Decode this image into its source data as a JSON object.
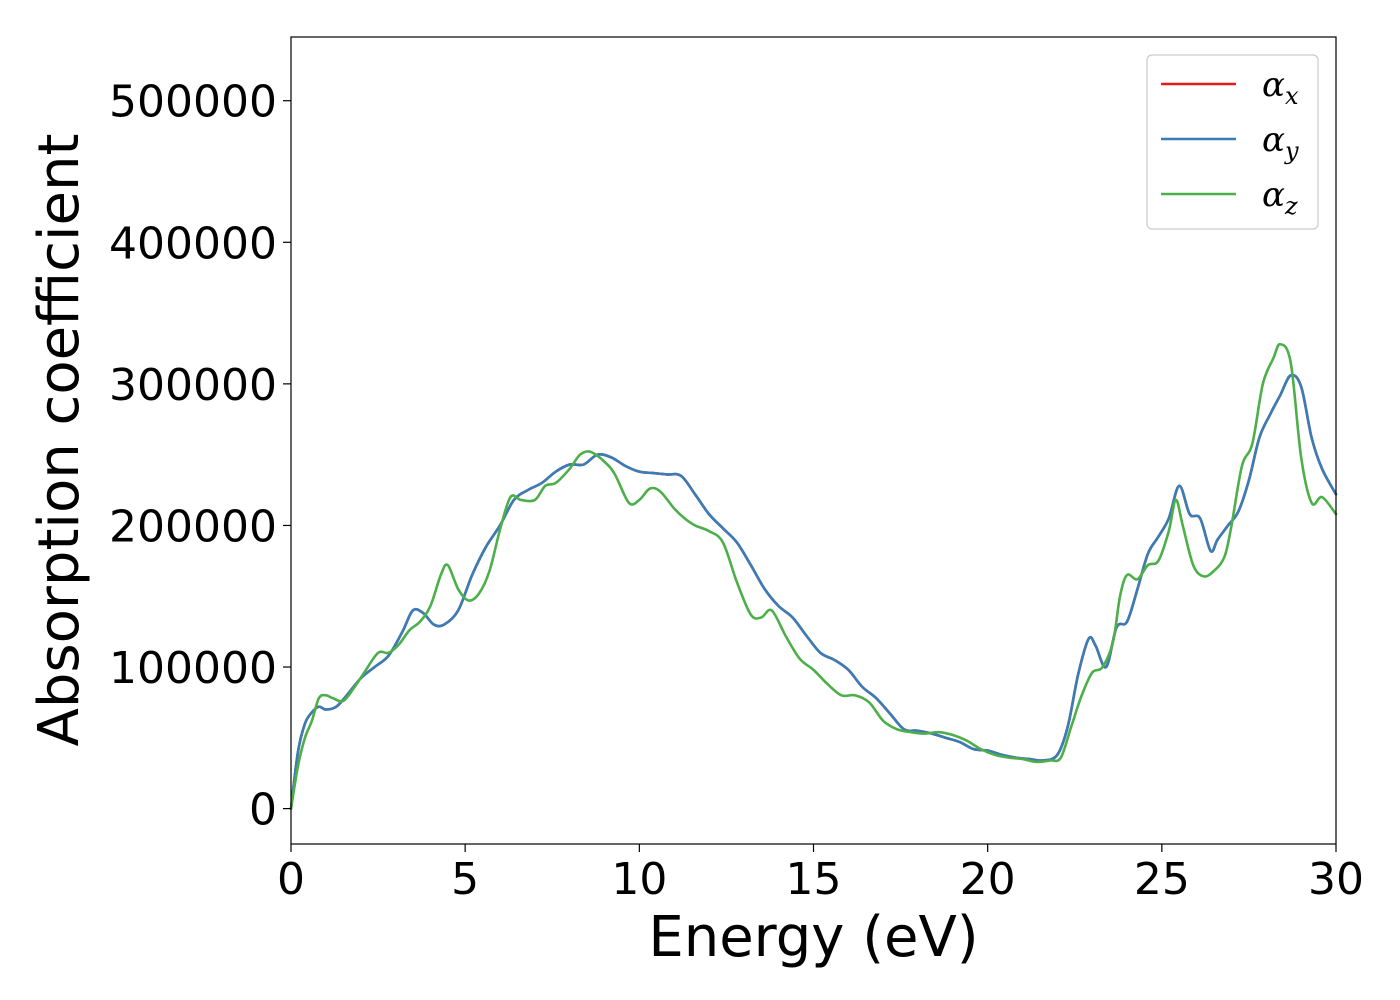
{
  "chart_data": {
    "type": "line",
    "title": "",
    "xlabel": "Energy (eV)",
    "ylabel": "Absorption coefficient",
    "xlim": [
      0,
      30
    ],
    "ylim": [
      -25000,
      545000
    ],
    "x_ticks": [
      0,
      5,
      10,
      15,
      20,
      25,
      30
    ],
    "y_ticks": [
      0,
      100000,
      200000,
      300000,
      400000,
      500000
    ],
    "grid": false,
    "legend_position": "top-right",
    "series": [
      {
        "name": "α_x",
        "symbol": "α",
        "subscript": "x",
        "color": "#e41a1c",
        "x": [
          0,
          0.2,
          0.4,
          0.6,
          0.8,
          1.0,
          1.3,
          1.6,
          2.0,
          2.4,
          2.8,
          3.2,
          3.5,
          3.8,
          4.1,
          4.4,
          4.8,
          5.2,
          5.6,
          6.0,
          6.4,
          6.8,
          7.2,
          7.6,
          8.0,
          8.4,
          8.8,
          9.2,
          9.6,
          10.0,
          10.4,
          10.8,
          11.2,
          11.6,
          12.0,
          12.4,
          12.8,
          13.2,
          13.6,
          14.0,
          14.4,
          14.8,
          15.2,
          15.6,
          16.0,
          16.4,
          16.8,
          17.2,
          17.6,
          18.0,
          18.4,
          18.8,
          19.2,
          19.6,
          20.0,
          20.4,
          20.8,
          21.2,
          21.6,
          22.0,
          22.3,
          22.6,
          22.9,
          23.1,
          23.4,
          23.7,
          24.0,
          24.3,
          24.6,
          24.9,
          25.2,
          25.5,
          25.8,
          26.1,
          26.4,
          26.6,
          26.9,
          27.2,
          27.5,
          27.8,
          28.1,
          28.4,
          28.7,
          29.0,
          29.3,
          29.6,
          30.0
        ],
        "y": [
          0,
          40000,
          60000,
          68000,
          72000,
          70000,
          72000,
          80000,
          92000,
          100000,
          108000,
          125000,
          140000,
          138000,
          130000,
          130000,
          140000,
          165000,
          185000,
          200000,
          218000,
          225000,
          230000,
          238000,
          243000,
          243000,
          250000,
          248000,
          242000,
          238000,
          237000,
          236000,
          235000,
          222000,
          208000,
          198000,
          188000,
          172000,
          155000,
          143000,
          135000,
          122000,
          110000,
          105000,
          98000,
          86000,
          78000,
          67000,
          56000,
          55000,
          53000,
          50000,
          47000,
          42000,
          41000,
          38000,
          36000,
          35000,
          34000,
          38000,
          58000,
          95000,
          120000,
          115000,
          100000,
          128000,
          132000,
          155000,
          180000,
          192000,
          205000,
          228000,
          208000,
          205000,
          182000,
          190000,
          200000,
          210000,
          232000,
          262000,
          278000,
          292000,
          306000,
          298000,
          262000,
          240000,
          222000
        ]
      },
      {
        "name": "α_y",
        "symbol": "α",
        "subscript": "y",
        "color": "#377eb8",
        "x": [
          0,
          0.2,
          0.4,
          0.6,
          0.8,
          1.0,
          1.3,
          1.6,
          2.0,
          2.4,
          2.8,
          3.2,
          3.5,
          3.8,
          4.1,
          4.4,
          4.8,
          5.2,
          5.6,
          6.0,
          6.4,
          6.8,
          7.2,
          7.6,
          8.0,
          8.4,
          8.8,
          9.2,
          9.6,
          10.0,
          10.4,
          10.8,
          11.2,
          11.6,
          12.0,
          12.4,
          12.8,
          13.2,
          13.6,
          14.0,
          14.4,
          14.8,
          15.2,
          15.6,
          16.0,
          16.4,
          16.8,
          17.2,
          17.6,
          18.0,
          18.4,
          18.8,
          19.2,
          19.6,
          20.0,
          20.4,
          20.8,
          21.2,
          21.6,
          22.0,
          22.3,
          22.6,
          22.9,
          23.1,
          23.4,
          23.7,
          24.0,
          24.3,
          24.6,
          24.9,
          25.2,
          25.5,
          25.8,
          26.1,
          26.4,
          26.6,
          26.9,
          27.2,
          27.5,
          27.8,
          28.1,
          28.4,
          28.7,
          29.0,
          29.3,
          29.6,
          30.0
        ],
        "y": [
          0,
          40000,
          60000,
          68000,
          72000,
          70000,
          72000,
          80000,
          92000,
          100000,
          108000,
          125000,
          140000,
          138000,
          130000,
          130000,
          140000,
          165000,
          185000,
          200000,
          218000,
          225000,
          230000,
          238000,
          243000,
          243000,
          250000,
          248000,
          242000,
          238000,
          237000,
          236000,
          235000,
          222000,
          208000,
          198000,
          188000,
          172000,
          155000,
          143000,
          135000,
          122000,
          110000,
          105000,
          98000,
          86000,
          78000,
          67000,
          56000,
          55000,
          53000,
          50000,
          47000,
          42000,
          41000,
          38000,
          36000,
          35000,
          34000,
          38000,
          58000,
          95000,
          120000,
          115000,
          100000,
          128000,
          132000,
          155000,
          180000,
          192000,
          205000,
          228000,
          208000,
          205000,
          182000,
          190000,
          200000,
          210000,
          232000,
          262000,
          278000,
          292000,
          306000,
          298000,
          262000,
          240000,
          222000
        ]
      },
      {
        "name": "α_z",
        "symbol": "α",
        "subscript": "z",
        "color": "#4daf4a",
        "x": [
          0,
          0.2,
          0.4,
          0.6,
          0.8,
          1.0,
          1.2,
          1.5,
          1.8,
          2.1,
          2.5,
          2.8,
          3.1,
          3.4,
          3.7,
          4.0,
          4.3,
          4.5,
          4.8,
          5.1,
          5.4,
          5.7,
          6.0,
          6.3,
          6.6,
          7.0,
          7.3,
          7.6,
          8.0,
          8.3,
          8.6,
          9.0,
          9.3,
          9.7,
          10.0,
          10.3,
          10.6,
          11.0,
          11.3,
          11.6,
          12.0,
          12.4,
          12.8,
          13.2,
          13.5,
          13.8,
          14.2,
          14.6,
          15.0,
          15.4,
          15.8,
          16.2,
          16.6,
          17.0,
          17.4,
          17.8,
          18.2,
          18.6,
          19.0,
          19.4,
          19.8,
          20.2,
          20.6,
          21.0,
          21.4,
          21.8,
          22.1,
          22.4,
          22.7,
          23.0,
          23.3,
          23.6,
          23.8,
          24.0,
          24.3,
          24.6,
          24.9,
          25.2,
          25.4,
          25.6,
          25.9,
          26.2,
          26.5,
          26.8,
          27.0,
          27.3,
          27.6,
          27.9,
          28.2,
          28.4,
          28.7,
          29.0,
          29.3,
          29.6,
          30.0
        ],
        "y": [
          0,
          30000,
          50000,
          62000,
          78000,
          80000,
          78000,
          76000,
          85000,
          96000,
          110000,
          110000,
          116000,
          126000,
          132000,
          143000,
          165000,
          172000,
          155000,
          147000,
          152000,
          168000,
          197000,
          220000,
          218000,
          218000,
          228000,
          230000,
          240000,
          250000,
          252000,
          245000,
          236000,
          216000,
          218000,
          226000,
          224000,
          212000,
          205000,
          200000,
          196000,
          188000,
          160000,
          137000,
          135000,
          140000,
          122000,
          106000,
          98000,
          88000,
          80000,
          80000,
          75000,
          62000,
          56000,
          54000,
          53000,
          54000,
          52000,
          48000,
          42000,
          38000,
          36000,
          35000,
          33000,
          34000,
          36000,
          58000,
          80000,
          96000,
          100000,
          118000,
          150000,
          165000,
          162000,
          172000,
          175000,
          196000,
          218000,
          200000,
          172000,
          164000,
          168000,
          178000,
          200000,
          242000,
          258000,
          300000,
          318000,
          328000,
          315000,
          248000,
          216000,
          220000,
          208000
        ]
      }
    ]
  }
}
